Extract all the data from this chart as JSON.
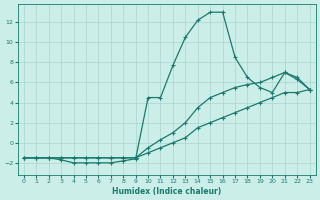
{
  "xlabel": "Humidex (Indice chaleur)",
  "bg_color": "#cceee8",
  "grid_color": "#aad4ce",
  "line_color": "#1a7a6e",
  "xlim": [
    -0.5,
    23.5
  ],
  "ylim": [
    -3.2,
    13.8
  ],
  "xticks": [
    0,
    1,
    2,
    3,
    4,
    5,
    6,
    7,
    8,
    9,
    10,
    11,
    12,
    13,
    14,
    15,
    16,
    17,
    18,
    19,
    20,
    21,
    22,
    23
  ],
  "yticks": [
    -2,
    0,
    2,
    4,
    6,
    8,
    10,
    12
  ],
  "line1_x": [
    0,
    1,
    2,
    3,
    4,
    5,
    6,
    7,
    8,
    9,
    10,
    11,
    12,
    13,
    14,
    15,
    16,
    17,
    18,
    19,
    20,
    21,
    22,
    23
  ],
  "line1_y": [
    -1.5,
    -1.5,
    -1.5,
    -1.7,
    -2.0,
    -2.0,
    -2.0,
    -2.0,
    -1.8,
    -1.6,
    4.5,
    4.5,
    7.7,
    10.5,
    12.2,
    13.0,
    13.0,
    8.5,
    6.5,
    5.5,
    5.0,
    7.0,
    6.3,
    5.3
  ],
  "line2_x": [
    0,
    1,
    2,
    3,
    4,
    5,
    6,
    7,
    8,
    9,
    10,
    11,
    12,
    13,
    14,
    15,
    16,
    17,
    18,
    19,
    20,
    21,
    22,
    23
  ],
  "line2_y": [
    -1.5,
    -1.5,
    -1.5,
    -1.5,
    -1.5,
    -1.5,
    -1.5,
    -1.5,
    -1.5,
    -1.5,
    -0.5,
    0.3,
    1.0,
    2.0,
    3.5,
    4.5,
    5.0,
    5.5,
    5.8,
    6.0,
    6.5,
    7.0,
    6.5,
    5.3
  ],
  "line3_x": [
    0,
    1,
    2,
    3,
    4,
    5,
    6,
    7,
    8,
    9,
    10,
    11,
    12,
    13,
    14,
    15,
    16,
    17,
    18,
    19,
    20,
    21,
    22,
    23
  ],
  "line3_y": [
    -1.5,
    -1.5,
    -1.5,
    -1.5,
    -1.5,
    -1.5,
    -1.5,
    -1.5,
    -1.5,
    -1.5,
    -1.0,
    -0.5,
    0.0,
    0.5,
    1.5,
    2.0,
    2.5,
    3.0,
    3.5,
    4.0,
    4.5,
    5.0,
    5.0,
    5.3
  ]
}
